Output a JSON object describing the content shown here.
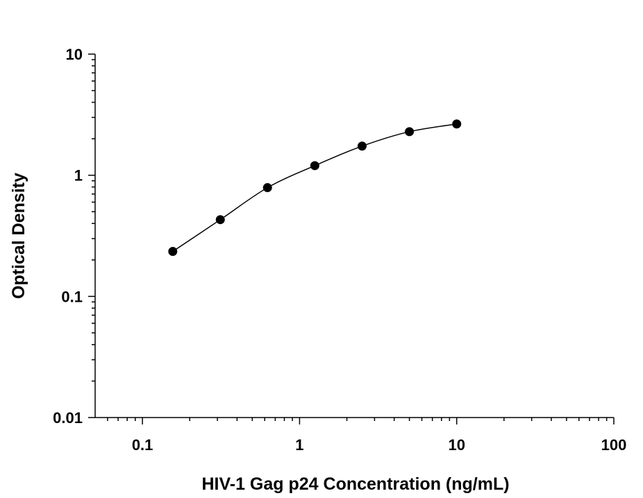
{
  "chart_data": {
    "type": "scatter",
    "x_label": "HIV-1 Gag p24 Concentration (ng/mL)",
    "y_label": "Optical Density",
    "x_log": true,
    "y_log": true,
    "xlim": [
      0.05,
      100
    ],
    "ylim": [
      0.01,
      10
    ],
    "xticks": [
      0.1,
      1,
      10,
      100
    ],
    "yticks": [
      0.01,
      0.1,
      1,
      10
    ],
    "series": [
      {
        "color": "#000000",
        "x": [
          0.156,
          0.313,
          0.625,
          1.25,
          2.5,
          5,
          10
        ],
        "values": [
          0.235,
          0.43,
          0.79,
          1.2,
          1.74,
          2.29,
          2.65
        ]
      }
    ]
  }
}
